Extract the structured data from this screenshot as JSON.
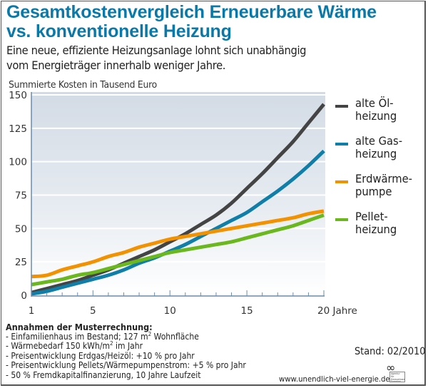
{
  "header": {
    "title_line1": "Gesamtkostenvergleich Erneuerbare Wärme",
    "title_line2": "vs. konventionelle Heizung",
    "subtitle_line1": "Eine neue, effiziente Heizungsanlage lohnt sich unabhängig",
    "subtitle_line2": "vom Energieträger innerhalb weniger Jahre."
  },
  "chart_data": {
    "type": "line",
    "title": "Gesamtkostenvergleich Erneuerbare Wärme vs. konventionelle Heizung",
    "ylabel": "Summierte Kosten in Tausend Euro",
    "xlabel": "Jahre",
    "x": [
      1,
      2,
      3,
      4,
      5,
      6,
      7,
      8,
      9,
      10,
      11,
      12,
      13,
      14,
      15,
      16,
      17,
      18,
      19,
      20
    ],
    "xlim": [
      1,
      20
    ],
    "ylim": [
      0,
      150
    ],
    "x_ticks": [
      1,
      5,
      10,
      15,
      20
    ],
    "x_tick_labels": [
      "1",
      "5",
      "10",
      "15",
      "20 Jahre"
    ],
    "y_ticks": [
      0,
      25,
      50,
      75,
      100,
      125,
      150
    ],
    "y_tick_labels": [
      "0",
      "25",
      "50",
      "75",
      "100",
      "125",
      "150"
    ],
    "grid": true,
    "legend_position": "right",
    "series": [
      {
        "name": "alte Ölheizung",
        "label": "alte Öl-\nheizung",
        "color": "#444444",
        "values": [
          2,
          5,
          8,
          11,
          15,
          19,
          24,
          29,
          34,
          40,
          46,
          53,
          60,
          69,
          80,
          91,
          103,
          115,
          129,
          143
        ]
      },
      {
        "name": "alte Gasheizung",
        "label": "alte Gas-\nheizung",
        "color": "#0f7ea8",
        "values": [
          1,
          3,
          6,
          9,
          12,
          15,
          19,
          24,
          28,
          33,
          38,
          44,
          50,
          56,
          62,
          70,
          78,
          87,
          97,
          108
        ]
      },
      {
        "name": "Erdwärmepumpe",
        "label": "Erdwärme-\npumpe",
        "color": "#f39200",
        "values": [
          14,
          15,
          19,
          22,
          25,
          29,
          32,
          36,
          39,
          42,
          44,
          46,
          48,
          50,
          52,
          54,
          56,
          58,
          61,
          63
        ]
      },
      {
        "name": "Pelletheizung",
        "label": "Pellet-\nheizung",
        "color": "#6ab71e",
        "values": [
          8,
          10,
          12,
          15,
          17,
          20,
          23,
          26,
          29,
          32,
          34,
          36,
          38,
          40,
          43,
          46,
          49,
          52,
          56,
          60
        ]
      }
    ]
  },
  "notes": {
    "heading": "Annahmen der Musterrechnung:",
    "item1_pre": "- Einfamilienhaus im Bestand; 127 m",
    "item1_sup": "2",
    "item1_post": " Wohnfläche",
    "item2_pre": "- Wärmebedarf 150 kWh/m",
    "item2_sup": "2",
    "item2_post": " im Jahr",
    "item3": "- Preisentwicklung Erdgas/Heizöl: +10 % pro Jahr",
    "item4": "- Preisentwicklung Pellets/Wärmepumpenstrom: +5 % pro Jahr",
    "item5": "- 50 % Fremdkapitalfinanzierung, 10 Jahre Laufzeit"
  },
  "footer": {
    "stand": "Stand: 02/2010",
    "url": "www.unendlich-viel-energie.de",
    "logo_symbol": "∞",
    "logo_text": "Agentur für\nErneuerbare\nEnergien"
  }
}
